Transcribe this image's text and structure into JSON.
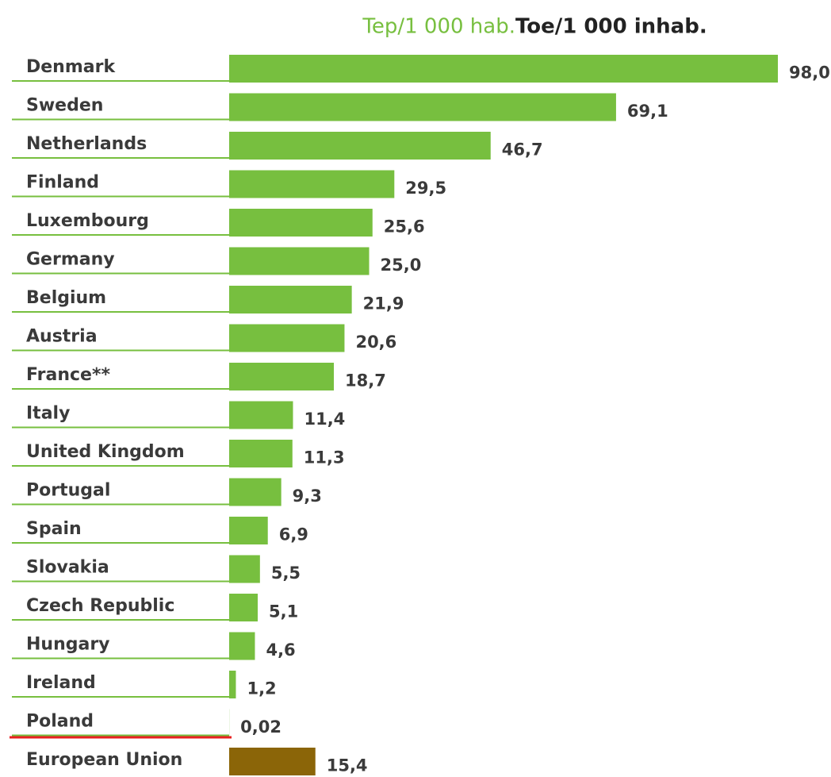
{
  "chart_data": {
    "type": "barh",
    "title": "Tep/1 000 hab.",
    "subtitle": "Toe/1 000 inhab.",
    "categories": [
      "Denmark",
      "Sweden",
      "Netherlands",
      "Finland",
      "Luxembourg",
      "Germany",
      "Belgium",
      "Austria",
      "France**",
      "Italy",
      "United Kingdom",
      "Portugal",
      "Spain",
      "Slovakia",
      "Czech Republic",
      "Hungary",
      "Ireland",
      "Poland",
      "European Union"
    ],
    "values": [
      98.0,
      69.1,
      46.7,
      29.5,
      25.6,
      25.0,
      21.9,
      20.6,
      18.7,
      11.4,
      11.3,
      9.3,
      6.9,
      5.5,
      5.1,
      4.6,
      1.2,
      0.02,
      15.4
    ],
    "value_labels": [
      "98,0",
      "69,1",
      "46,7",
      "29,5",
      "25,6",
      "25,0",
      "21,9",
      "20,6",
      "18,7",
      "11,4",
      "11,3",
      "9,3",
      "6,9",
      "5,5",
      "5,1",
      "4,6",
      "1,2",
      "0,02",
      "15,4"
    ],
    "colors": [
      "#77bf3f",
      "#77bf3f",
      "#77bf3f",
      "#77bf3f",
      "#77bf3f",
      "#77bf3f",
      "#77bf3f",
      "#77bf3f",
      "#77bf3f",
      "#77bf3f",
      "#77bf3f",
      "#77bf3f",
      "#77bf3f",
      "#77bf3f",
      "#77bf3f",
      "#77bf3f",
      "#77bf3f",
      "#77bf3f",
      "#8b6508"
    ],
    "xlim": [
      0,
      98.0
    ]
  }
}
